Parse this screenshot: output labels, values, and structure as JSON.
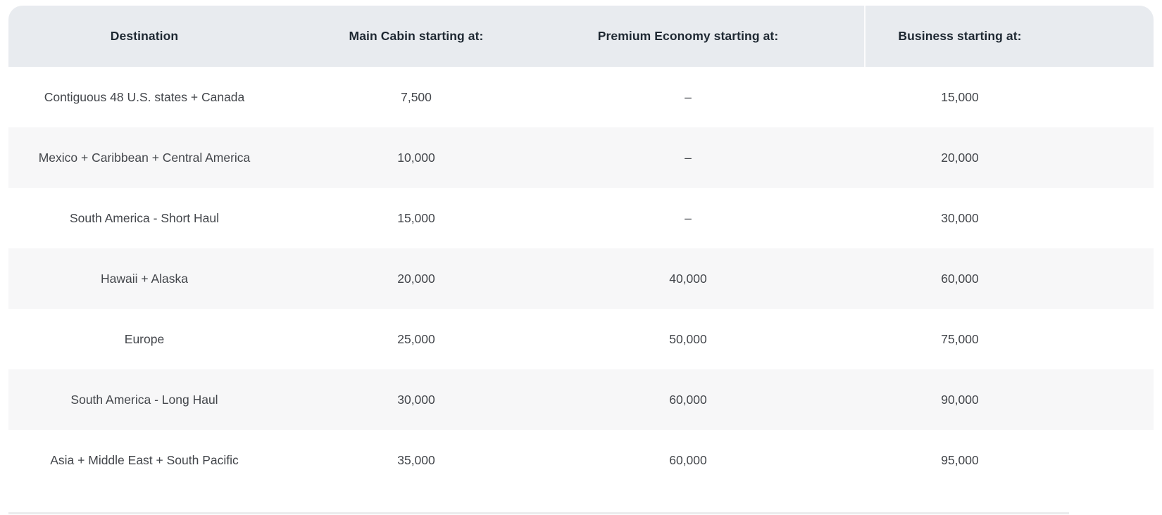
{
  "award_table": {
    "header": {
      "destination": "Destination",
      "main_cabin": "Main Cabin starting at:",
      "premium_economy": "Premium Economy starting at:",
      "business": "Business starting at:"
    },
    "rows": [
      {
        "destination": "Contiguous 48 U.S. states + Canada",
        "main_cabin": "7,500",
        "premium_economy": "–",
        "business": "15,000"
      },
      {
        "destination": "Mexico + Caribbean + Central America",
        "main_cabin": "10,000",
        "premium_economy": "–",
        "business": "20,000"
      },
      {
        "destination": "South America - Short Haul",
        "main_cabin": "15,000",
        "premium_economy": "–",
        "business": "30,000"
      },
      {
        "destination": "Hawaii + Alaska",
        "main_cabin": "20,000",
        "premium_economy": "40,000",
        "business": "60,000"
      },
      {
        "destination": "Europe",
        "main_cabin": "25,000",
        "premium_economy": "50,000",
        "business": "75,000"
      },
      {
        "destination": "South America - Long Haul",
        "main_cabin": "30,000",
        "premium_economy": "60,000",
        "business": "90,000"
      },
      {
        "destination": "Asia + Middle East + South Pacific",
        "main_cabin": "35,000",
        "premium_economy": "60,000",
        "business": "95,000"
      }
    ],
    "colors": {
      "header_bg": "#e8ebef",
      "stripe_bg": "#f7f7f8",
      "header_text": "#1e2832",
      "body_text": "#43464b"
    }
  },
  "chart_data": {
    "type": "table",
    "columns": [
      "Destination",
      "Main Cabin starting at:",
      "Premium Economy starting at:",
      "Business starting at:"
    ],
    "rows": [
      [
        "Contiguous 48 U.S. states + Canada",
        "7,500",
        "–",
        "15,000"
      ],
      [
        "Mexico + Caribbean + Central America",
        "10,000",
        "–",
        "20,000"
      ],
      [
        "South America - Short Haul",
        "15,000",
        "–",
        "30,000"
      ],
      [
        "Hawaii + Alaska",
        "20,000",
        "40,000",
        "60,000"
      ],
      [
        "Europe",
        "25,000",
        "50,000",
        "75,000"
      ],
      [
        "South America - Long Haul",
        "30,000",
        "60,000",
        "90,000"
      ],
      [
        "Asia + Middle East + South Pacific",
        "35,000",
        "60,000",
        "95,000"
      ]
    ]
  }
}
